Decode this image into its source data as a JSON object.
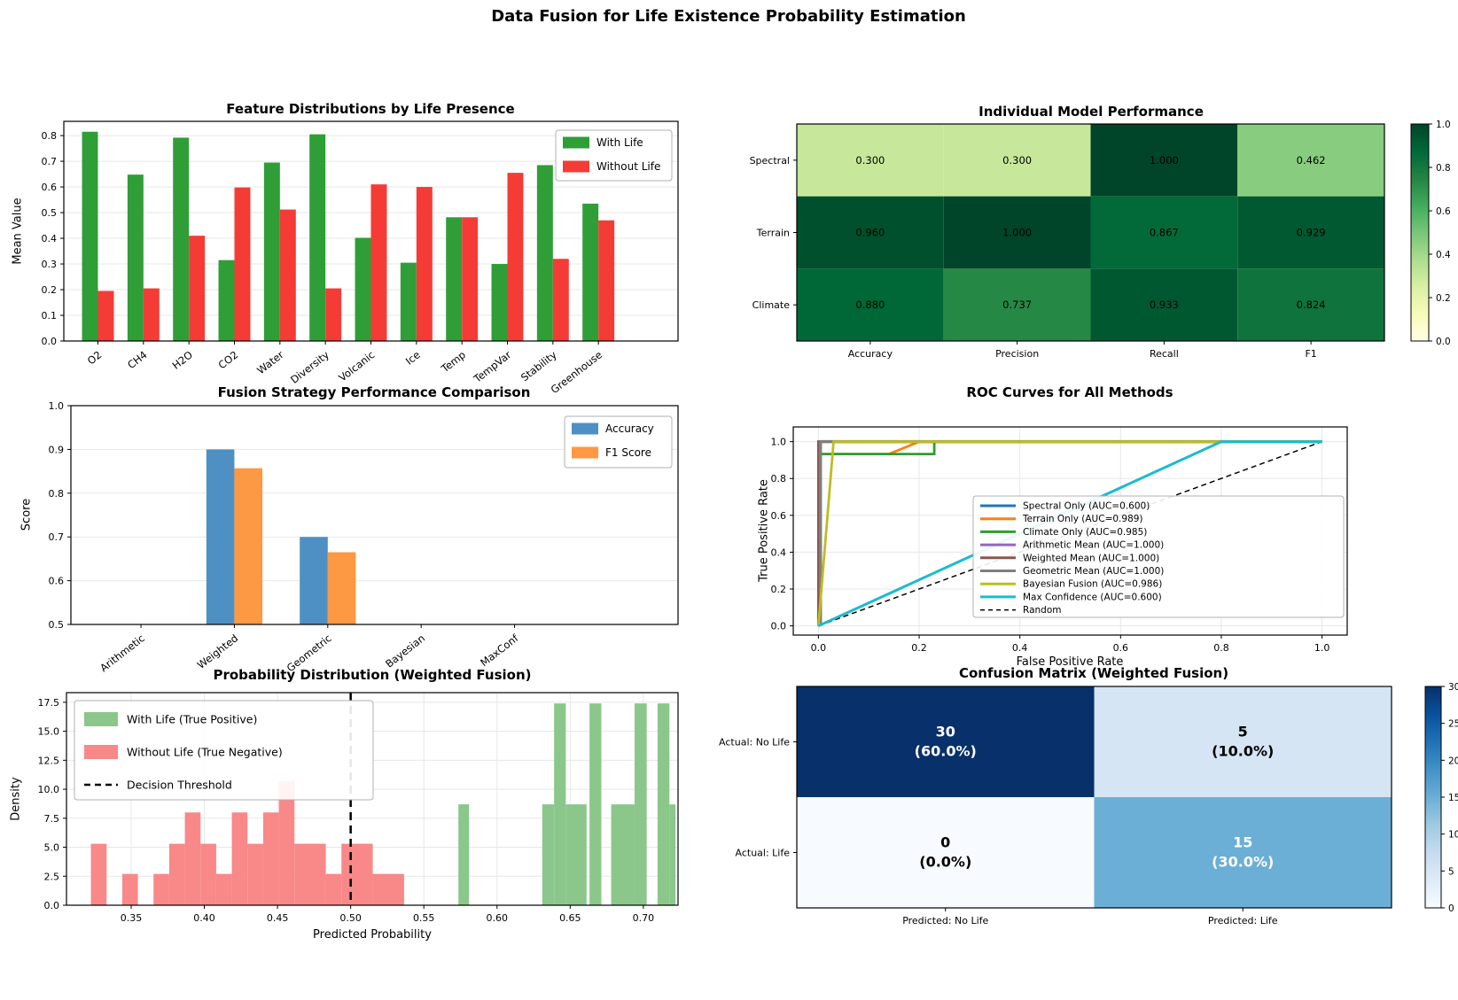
{
  "figure": {
    "suptitle": "Data Fusion for Life Existence Probability Estimation",
    "background": "#ffffff"
  },
  "chart_data": [
    {
      "type": "bar",
      "title": "Feature Distributions by Life Presence",
      "xlabel": "",
      "ylabel": "Mean Value",
      "categories": [
        "O2",
        "CH4",
        "H2O",
        "CO2",
        "Water",
        "Diversity",
        "Volcanic",
        "Ice",
        "Temp",
        "TempVar",
        "Stability",
        "Greenhouse"
      ],
      "series": [
        {
          "name": "With Life",
          "color": "#2f9e37",
          "values": [
            0.815,
            0.648,
            0.792,
            0.315,
            0.695,
            0.805,
            0.402,
            0.305,
            0.482,
            0.3,
            0.685,
            0.535
          ]
        },
        {
          "name": "Without Life",
          "color": "#f53b36",
          "values": [
            0.195,
            0.205,
            0.41,
            0.598,
            0.512,
            0.205,
            0.61,
            0.6,
            0.482,
            0.655,
            0.32,
            0.47
          ]
        }
      ],
      "ylim": [
        0,
        0.8555
      ],
      "yticks": [
        "0.0",
        "0.1",
        "0.2",
        "0.3",
        "0.4",
        "0.5",
        "0.6",
        "0.7",
        "0.8"
      ],
      "legend_position": "upper-right",
      "grid": "horizontal"
    },
    {
      "type": "heatmap",
      "title": "Individual Model Performance",
      "rows": [
        "Spectral",
        "Terrain",
        "Climate"
      ],
      "cols": [
        "Accuracy",
        "Precision",
        "Recall",
        "F1"
      ],
      "values": [
        [
          0.3,
          0.3,
          1.0,
          0.462
        ],
        [
          0.96,
          1.0,
          0.867,
          0.929
        ],
        [
          0.88,
          0.737,
          0.933,
          0.824
        ]
      ],
      "value_labels": [
        [
          "0.300",
          "0.300",
          "1.000",
          "0.462"
        ],
        [
          "0.960",
          "1.000",
          "0.867",
          "0.929"
        ],
        [
          "0.880",
          "0.737",
          "0.933",
          "0.824"
        ]
      ],
      "cell_colors": [
        [
          "#c7e89b",
          "#c7e89b",
          "#004529",
          "#88cd7f"
        ],
        [
          "#00502d",
          "#004529",
          "#026a38",
          "#005931"
        ],
        [
          "#006736",
          "#268845",
          "#005831",
          "#0e733c"
        ]
      ],
      "colorbar": {
        "min": 0,
        "max": 1,
        "ticks": [
          "0.0",
          "0.2",
          "0.4",
          "0.6",
          "0.8",
          "1.0"
        ],
        "gradient": [
          "#ffffe5",
          "#f7fcb9",
          "#d9f0a3",
          "#addd8e",
          "#78c679",
          "#41ab5d",
          "#238443",
          "#006837",
          "#004529"
        ]
      }
    },
    {
      "type": "bar",
      "title": "Fusion Strategy Performance Comparison",
      "xlabel": "",
      "ylabel": "Score",
      "categories": [
        "Arithmetic",
        "Weighted",
        "Geometric",
        "Bayesian",
        "MaxConf"
      ],
      "series": [
        {
          "name": "Accuracy",
          "color": "#4e90c3",
          "values": [
            null,
            0.9,
            0.7,
            null,
            null
          ]
        },
        {
          "name": "F1 Score",
          "color": "#fd9843",
          "values": [
            null,
            0.857,
            0.665,
            null,
            null
          ]
        }
      ],
      "ylim": [
        0.5,
        1.0
      ],
      "yticks": [
        "0.5",
        "0.6",
        "0.7",
        "0.8",
        "0.9",
        "1.0"
      ],
      "legend_position": "upper-right",
      "grid": "horizontal"
    },
    {
      "type": "line",
      "title": "ROC Curves for All Methods",
      "xlabel": "False Positive Rate",
      "ylabel": "True Positive Rate",
      "xticks": [
        "0.0",
        "0.2",
        "0.4",
        "0.6",
        "0.8",
        "1.0"
      ],
      "yticks": [
        "0.0",
        "0.2",
        "0.4",
        "0.6",
        "0.8",
        "1.0"
      ],
      "xlim": [
        -0.05,
        1.05
      ],
      "ylim": [
        -0.05,
        1.08
      ],
      "grid": "both",
      "series": [
        {
          "label": "Spectral Only (AUC=0.600)",
          "color": "#1f77b4",
          "points": [
            [
              0,
              0
            ],
            [
              0.8,
              1
            ],
            [
              1,
              1
            ]
          ]
        },
        {
          "label": "Terrain Only (AUC=0.989)",
          "color": "#ff7f0e",
          "points": [
            [
              0,
              0
            ],
            [
              0,
              0.933
            ],
            [
              0.14,
              0.933
            ],
            [
              0.2,
              1
            ],
            [
              1,
              1
            ]
          ]
        },
        {
          "label": "Climate Only (AUC=0.985)",
          "color": "#2ca02c",
          "points": [
            [
              0,
              0
            ],
            [
              0,
              0.933
            ],
            [
              0.23,
              0.933
            ],
            [
              0.23,
              1
            ],
            [
              1,
              1
            ]
          ]
        },
        {
          "label": "Arithmetic Mean (AUC=1.000)",
          "color": "#9467bd",
          "points": [
            [
              0,
              0
            ],
            [
              0,
              1
            ],
            [
              1,
              1
            ]
          ]
        },
        {
          "label": "Weighted Mean (AUC=1.000)",
          "color": "#8c564b",
          "points": [
            [
              0,
              0
            ],
            [
              0,
              1
            ],
            [
              1,
              1
            ]
          ]
        },
        {
          "label": "Geometric Mean (AUC=1.000)",
          "color": "#7f7f7f",
          "points": [
            [
              0.004,
              0
            ],
            [
              0.004,
              1
            ],
            [
              1,
              1
            ]
          ]
        },
        {
          "label": "Bayesian Fusion (AUC=0.986)",
          "color": "#bcbd22",
          "points": [
            [
              0,
              0
            ],
            [
              0.03,
              1
            ],
            [
              1,
              1
            ]
          ]
        },
        {
          "label": "Max Confidence (AUC=0.600)",
          "color": "#17becf",
          "points": [
            [
              0,
              0
            ],
            [
              0.8,
              1
            ],
            [
              1,
              1
            ]
          ]
        }
      ],
      "random": {
        "label": "Random",
        "color": "#000000",
        "points": [
          [
            0,
            0
          ],
          [
            1,
            1
          ]
        ]
      },
      "legend_position": "lower-right"
    },
    {
      "type": "histogram",
      "title": "Probability Distribution (Weighted Fusion)",
      "xlabel": "Predicted Probability",
      "ylabel": "Density",
      "xticks": [
        "0.35",
        "0.40",
        "0.45",
        "0.50",
        "0.55",
        "0.60",
        "0.65",
        "0.70"
      ],
      "yticks": [
        "0.0",
        "2.5",
        "5.0",
        "7.5",
        "10.0",
        "12.5",
        "15.0",
        "17.5"
      ],
      "xlim": [
        0.3058,
        0.7237
      ],
      "ylim": [
        0,
        18.33
      ],
      "threshold": 0.5,
      "grid": "both",
      "legend": [
        {
          "label": "With Life (True Positive)",
          "color": "#8bc78b",
          "kind": "patch"
        },
        {
          "label": "Without Life (True Negative)",
          "color": "#f98888",
          "kind": "patch"
        },
        {
          "label": "Decision Threshold",
          "color": "#000000",
          "kind": "dashed-line"
        }
      ],
      "red_bars": [
        [
          0.3225,
          0.3332,
          5.3
        ],
        [
          0.3439,
          0.3546,
          2.7
        ],
        [
          0.3653,
          0.376,
          2.7
        ],
        [
          0.376,
          0.3867,
          5.3
        ],
        [
          0.3867,
          0.3974,
          8.0
        ],
        [
          0.3974,
          0.4081,
          5.3
        ],
        [
          0.4081,
          0.4188,
          2.7
        ],
        [
          0.4188,
          0.4295,
          8.0
        ],
        [
          0.4295,
          0.4402,
          5.3
        ],
        [
          0.4402,
          0.4509,
          8.0
        ],
        [
          0.4509,
          0.4616,
          10.7
        ],
        [
          0.4616,
          0.483,
          5.3
        ],
        [
          0.483,
          0.4937,
          2.7
        ],
        [
          0.4937,
          0.5151,
          5.3
        ],
        [
          0.5151,
          0.5365,
          2.7
        ]
      ],
      "green_bars": [
        [
          0.5736,
          0.5809,
          8.7
        ],
        [
          0.6309,
          0.639,
          8.7
        ],
        [
          0.639,
          0.647,
          17.4
        ],
        [
          0.647,
          0.6612,
          8.7
        ],
        [
          0.6632,
          0.6713,
          17.4
        ],
        [
          0.678,
          0.694,
          8.7
        ],
        [
          0.694,
          0.7023,
          17.4
        ],
        [
          0.7097,
          0.7178,
          17.4
        ],
        [
          0.7178,
          0.722,
          8.7
        ]
      ]
    },
    {
      "type": "heatmap",
      "title": "Confusion Matrix (Weighted Fusion)",
      "rows": [
        "Actual: No Life",
        "Actual: Life"
      ],
      "cols": [
        "Predicted: No Life",
        "Predicted: Life"
      ],
      "cells": [
        [
          {
            "count": "30",
            "pct": "(60.0%)",
            "color": "#08306b",
            "text": "#ffffff"
          },
          {
            "count": "5",
            "pct": "(10.0%)",
            "color": "#d6e5f4",
            "text": "#000000"
          }
        ],
        [
          {
            "count": "0",
            "pct": "(0.0%)",
            "color": "#f7fbff",
            "text": "#000000"
          },
          {
            "count": "15",
            "pct": "(30.0%)",
            "color": "#6baed6",
            "text": "#ffffff"
          }
        ]
      ],
      "colorbar": {
        "min": 0,
        "max": 30,
        "ticks": [
          "0",
          "5",
          "10",
          "15",
          "20",
          "25",
          "30"
        ],
        "gradient": [
          "#f7fbff",
          "#deebf7",
          "#c6dbef",
          "#9ecae1",
          "#6baed6",
          "#4292c6",
          "#2171b5",
          "#08519c",
          "#08306b"
        ]
      }
    }
  ]
}
